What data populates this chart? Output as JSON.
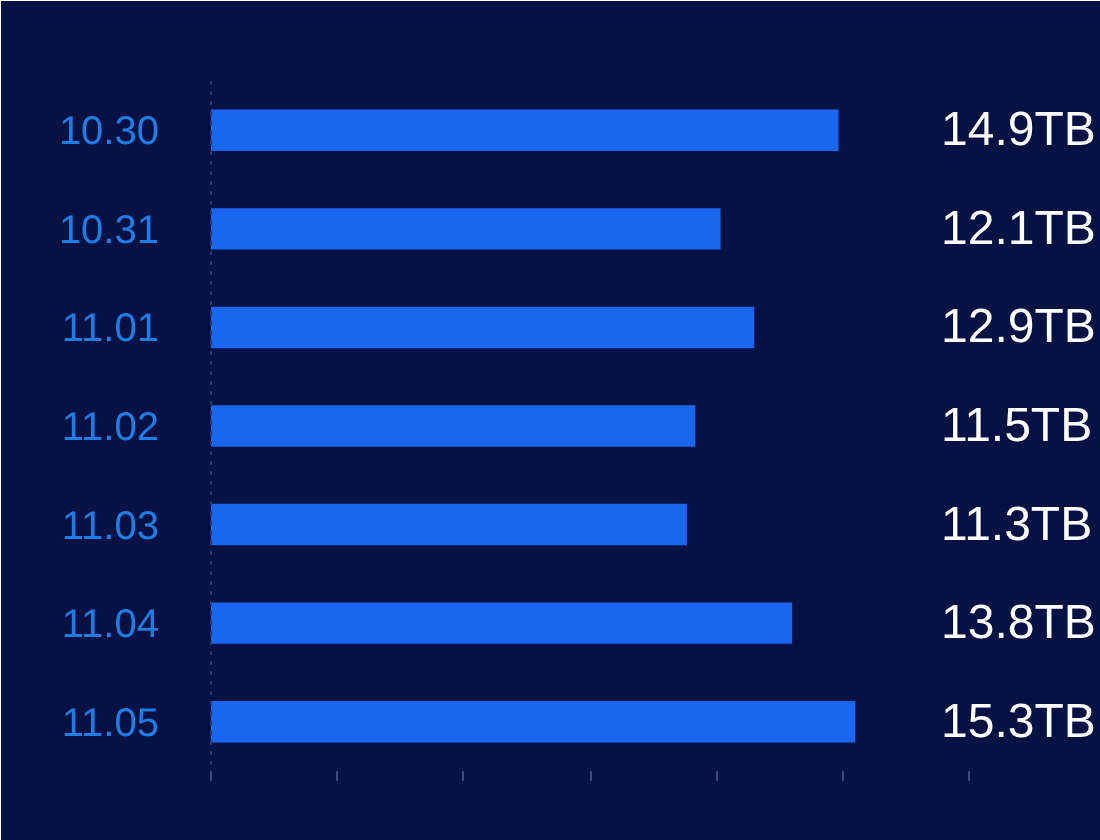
{
  "chart_data": {
    "type": "bar",
    "orientation": "horizontal",
    "categories": [
      "10.30",
      "10.31",
      "11.01",
      "11.02",
      "11.03",
      "11.04",
      "11.05"
    ],
    "values": [
      14.9,
      12.1,
      12.9,
      11.5,
      11.3,
      13.8,
      15.3
    ],
    "value_labels": [
      "14.9TB",
      "12.1TB",
      "12.9TB",
      "11.5TB",
      "11.3TB",
      "13.8TB",
      "15.3TB"
    ],
    "color": "#1a66f0",
    "xlim": [
      0,
      18
    ],
    "xticks": [
      {
        "value": 0,
        "label": null
      },
      {
        "value": 3,
        "label": null
      },
      {
        "value": 6,
        "label": null
      },
      {
        "value": 9,
        "label": null
      },
      {
        "value": 12,
        "label": null
      },
      {
        "value": 15,
        "label": null
      },
      {
        "value": 18,
        "label": null
      }
    ]
  }
}
